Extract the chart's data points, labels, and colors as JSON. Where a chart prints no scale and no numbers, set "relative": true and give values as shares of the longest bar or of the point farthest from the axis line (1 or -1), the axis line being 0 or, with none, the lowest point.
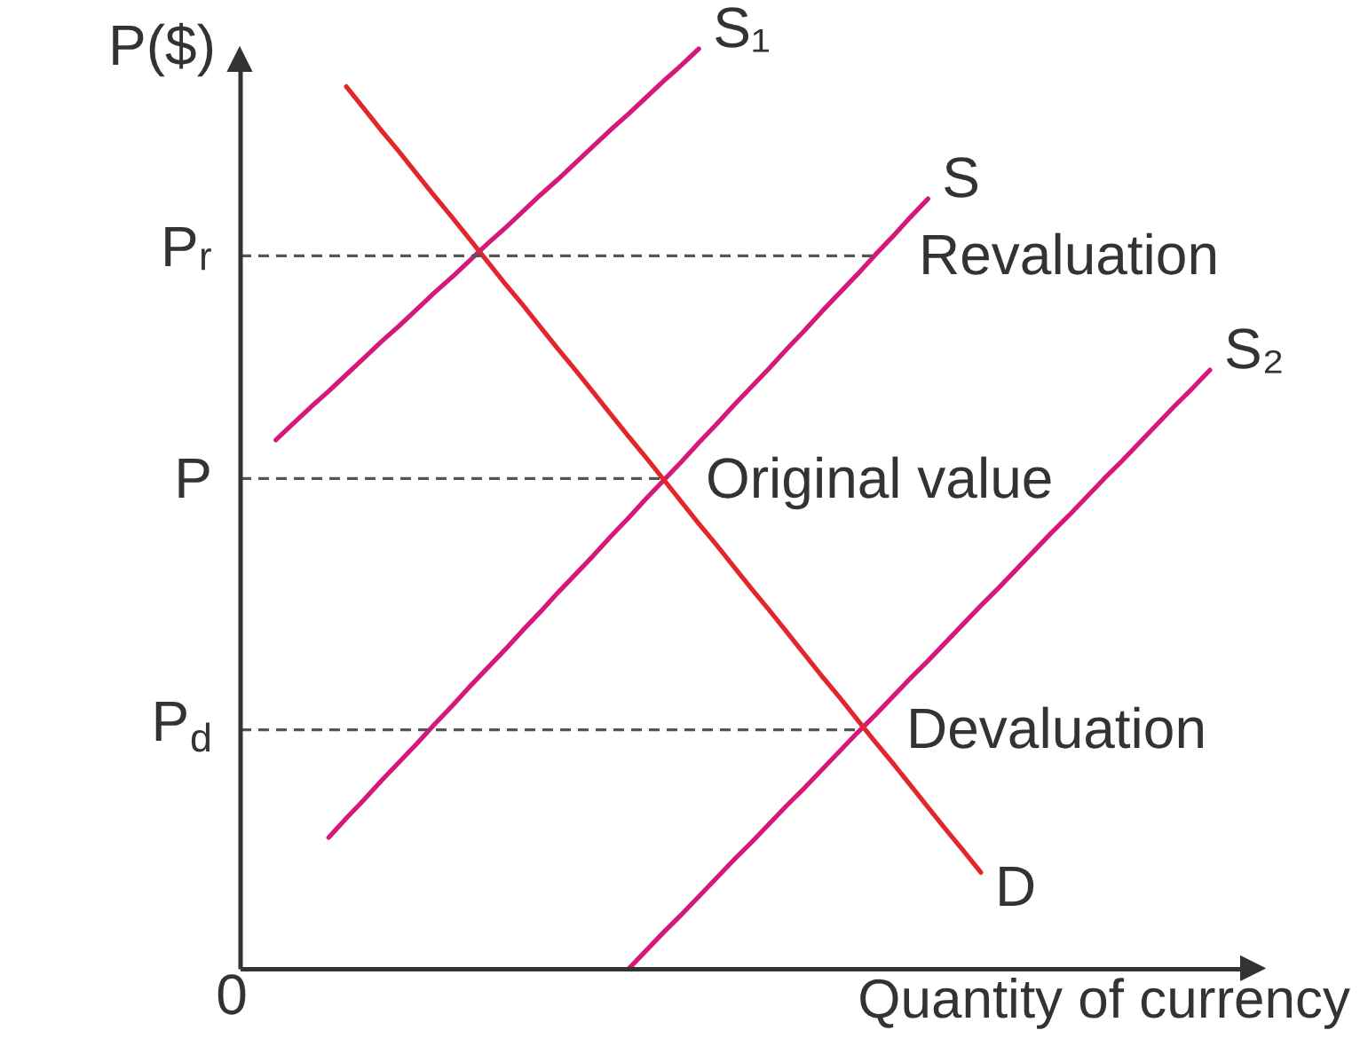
{
  "chart_data": {
    "type": "line",
    "relative": true,
    "xlabel": "Quantity of currency",
    "ylabel": "P($)",
    "categories": [
      null,
      null,
      null,
      null,
      null,
      null,
      null,
      null,
      null,
      null,
      null,
      null,
      null,
      null,
      null,
      null,
      null,
      null,
      null,
      null,
      null,
      null,
      null,
      null,
      null,
      null,
      null,
      null,
      null,
      null,
      null,
      null,
      null,
      null,
      null,
      null,
      null,
      null,
      null,
      null,
      null,
      null,
      null,
      null,
      null,
      null,
      null,
      null,
      null,
      null,
      null,
      null,
      null,
      null,
      null,
      null
    ],
    "series": [
      {
        "name": "S₁",
        "color": "#d6187a",
        "values": [
          null,
          null,
          0.575,
          0.593,
          0.611,
          0.628,
          0.646,
          0.664,
          0.682,
          0.699,
          0.717,
          0.735,
          0.752,
          0.77,
          0.788,
          0.805,
          0.823,
          0.841,
          0.858,
          0.876,
          0.894,
          0.912,
          0.929,
          0.947,
          0.965,
          0.982,
          1.0,
          null,
          null,
          null,
          null,
          null,
          null,
          null,
          null,
          null,
          null,
          null,
          null,
          null,
          null,
          null,
          null,
          null,
          null,
          null,
          null,
          null,
          null,
          null,
          null,
          null,
          null,
          null,
          null,
          null
        ]
      },
      {
        "name": "S",
        "color": "#d6187a",
        "values": [
          null,
          null,
          null,
          null,
          null,
          0.143,
          0.164,
          0.184,
          0.205,
          0.225,
          0.245,
          0.266,
          0.286,
          0.307,
          0.327,
          0.347,
          0.368,
          0.388,
          0.409,
          0.429,
          0.449,
          0.47,
          0.49,
          0.511,
          0.531,
          0.551,
          0.572,
          0.592,
          0.613,
          0.633,
          0.653,
          0.674,
          0.694,
          0.715,
          0.735,
          0.755,
          0.776,
          0.796,
          0.817,
          0.837,
          null,
          null,
          null,
          null,
          null,
          null,
          null,
          null,
          null,
          null,
          null,
          null,
          null,
          null,
          null,
          null
        ]
      },
      {
        "name": "S₂",
        "color": "#d6187a",
        "values": [
          null,
          null,
          null,
          null,
          null,
          null,
          null,
          null,
          null,
          null,
          null,
          null,
          null,
          null,
          null,
          null,
          null,
          null,
          null,
          null,
          null,
          null,
          0.0,
          0.02,
          0.04,
          0.059,
          0.079,
          0.099,
          0.119,
          0.138,
          0.158,
          0.178,
          0.197,
          0.217,
          0.237,
          0.257,
          0.276,
          0.296,
          0.316,
          0.335,
          0.355,
          0.375,
          0.395,
          0.414,
          0.434,
          0.454,
          0.474,
          0.493,
          0.513,
          0.533,
          0.552,
          0.572,
          0.592,
          0.612,
          0.631,
          0.651
        ]
      },
      {
        "name": "D",
        "color": "#e3262b",
        "values": [
          null,
          null,
          null,
          null,
          null,
          null,
          0.959,
          0.935,
          0.911,
          0.888,
          0.864,
          0.84,
          0.817,
          0.793,
          0.769,
          0.745,
          0.722,
          0.698,
          0.674,
          0.651,
          0.627,
          0.603,
          0.579,
          0.556,
          0.532,
          0.508,
          0.484,
          0.461,
          0.437,
          0.413,
          0.39,
          0.366,
          0.342,
          0.318,
          0.295,
          0.271,
          0.247,
          0.224,
          0.2,
          0.176,
          0.152,
          0.129,
          0.105,
          null,
          null,
          null,
          null,
          null,
          null,
          null,
          null,
          null,
          null,
          null,
          null,
          null
        ]
      },
      {
        "name": "Pᵣ",
        "color": "#555555",
        "line_style": "dashed",
        "values": [
          0.775,
          0.775,
          0.775,
          0.775,
          0.775,
          0.775,
          0.775,
          0.775,
          0.775,
          0.775,
          0.775,
          0.775,
          0.775,
          0.775,
          0.775,
          0.775,
          0.775,
          0.775,
          0.775,
          0.775,
          0.775,
          0.775,
          0.775,
          0.775,
          0.775,
          0.775,
          0.775,
          0.775,
          0.775,
          0.775,
          0.775,
          0.775,
          0.775,
          0.775,
          0.775,
          0.775,
          0.775,
          null,
          null,
          null,
          null,
          null,
          null,
          null,
          null,
          null,
          null,
          null,
          null,
          null,
          null,
          null,
          null,
          null,
          null,
          null
        ]
      },
      {
        "name": "P",
        "color": "#555555",
        "line_style": "dashed",
        "values": [
          0.533,
          0.533,
          0.533,
          0.533,
          0.533,
          0.533,
          0.533,
          0.533,
          0.533,
          0.533,
          0.533,
          0.533,
          0.533,
          0.533,
          0.533,
          0.533,
          0.533,
          0.533,
          0.533,
          0.533,
          0.533,
          0.533,
          0.533,
          0.533,
          0.533,
          null,
          null,
          null,
          null,
          null,
          null,
          null,
          null,
          null,
          null,
          null,
          null,
          null,
          null,
          null,
          null,
          null,
          null,
          null,
          null,
          null,
          null,
          null,
          null,
          null,
          null,
          null,
          null,
          null,
          null,
          null
        ]
      },
      {
        "name": "P$_{d}$",
        "color": "#555555",
        "line_style": "dashed",
        "values": [
          0.26,
          0.26,
          0.26,
          0.26,
          0.26,
          0.26,
          0.26,
          0.26,
          0.26,
          0.26,
          0.26,
          0.26,
          0.26,
          0.26,
          0.26,
          0.26,
          0.26,
          0.26,
          0.26,
          0.26,
          0.26,
          0.26,
          0.26,
          0.26,
          0.26,
          0.26,
          0.26,
          0.26,
          0.26,
          0.26,
          0.26,
          0.26,
          0.26,
          0.26,
          0.26,
          0.26,
          null,
          null,
          null,
          null,
          null,
          null,
          null,
          null,
          null,
          null,
          null,
          null,
          null,
          null,
          null,
          null,
          null,
          null,
          null,
          null
        ]
      }
    ],
    "annotations": [
      "Revaluation",
      "Original value",
      "Devaluation",
      "0"
    ]
  }
}
